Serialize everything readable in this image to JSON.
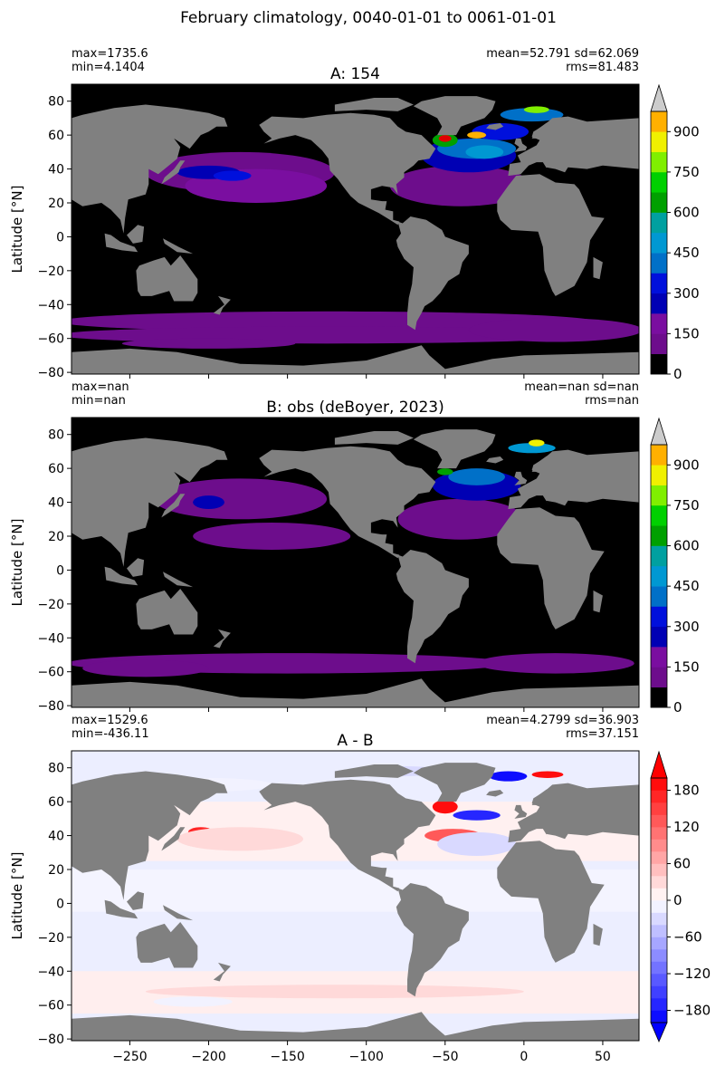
{
  "figure": {
    "suptitle": "February climatology, 0040-01-01 to 0061-01-01"
  },
  "chart_data": [
    {
      "type": "heatmap",
      "title": "A: 154",
      "stats_left": [
        "max=1735.6",
        "min=4.1404"
      ],
      "stats_right": [
        "mean=52.791 sd=62.069",
        "rms=81.483"
      ],
      "xlabel": "",
      "ylabel": "Latitude [°N]",
      "xlim": [
        -287,
        73
      ],
      "ylim": [
        -81,
        90
      ],
      "yticks": [
        80,
        60,
        40,
        20,
        0,
        -20,
        -40,
        -60,
        -80
      ],
      "yticklabels": [
        "80",
        "60",
        "40",
        "20",
        "0",
        "−20",
        "−40",
        "−60",
        "−80"
      ],
      "xticks": [
        -250,
        -200,
        -150,
        -100,
        -50,
        0,
        50
      ],
      "show_xticklabels": false,
      "colorbar": {
        "levels": [
          0,
          75,
          150,
          225,
          300,
          375,
          450,
          525,
          600,
          675,
          750,
          825,
          900,
          975
        ],
        "colors": [
          "#000000",
          "#6d0d8c",
          "#7a0ea0",
          "#0000b4",
          "#0010dc",
          "#0070c8",
          "#0098d2",
          "#00a0a0",
          "#00a000",
          "#00d000",
          "#80ef00",
          "#f0f000",
          "#ffb000",
          "#ff6000",
          "#e00000",
          "#ff0000"
        ],
        "extend": "max",
        "extend_color": "#cccccc",
        "ticks": [
          0,
          150,
          300,
          450,
          600,
          750,
          900
        ],
        "ticklabels": [
          "0",
          "150",
          "300",
          "450",
          "600",
          "750",
          "900"
        ]
      }
    },
    {
      "type": "heatmap",
      "title": "B: obs (deBoyer, 2023)",
      "stats_left": [
        "max=nan",
        "min=nan"
      ],
      "stats_right": [
        "mean=nan sd=nan",
        "rms=nan"
      ],
      "xlabel": "",
      "ylabel": "Latitude [°N]",
      "xlim": [
        -287,
        73
      ],
      "ylim": [
        -81,
        90
      ],
      "yticks": [
        80,
        60,
        40,
        20,
        0,
        -20,
        -40,
        -60,
        -80
      ],
      "yticklabels": [
        "80",
        "60",
        "40",
        "20",
        "0",
        "−20",
        "−40",
        "−60",
        "−80"
      ],
      "xticks": [
        -250,
        -200,
        -150,
        -100,
        -50,
        0,
        50
      ],
      "show_xticklabels": false,
      "colorbar": {
        "levels": [
          0,
          75,
          150,
          225,
          300,
          375,
          450,
          525,
          600,
          675,
          750,
          825,
          900,
          975
        ],
        "colors": [
          "#000000",
          "#6d0d8c",
          "#7a0ea0",
          "#0000b4",
          "#0010dc",
          "#0070c8",
          "#0098d2",
          "#00a0a0",
          "#00a000",
          "#00d000",
          "#80ef00",
          "#f0f000",
          "#ffb000",
          "#ff6000",
          "#e00000",
          "#ff0000"
        ],
        "extend": "max",
        "extend_color": "#cccccc",
        "ticks": [
          0,
          150,
          300,
          450,
          600,
          750,
          900
        ],
        "ticklabels": [
          "0",
          "150",
          "300",
          "450",
          "600",
          "750",
          "900"
        ]
      }
    },
    {
      "type": "heatmap",
      "title": "A - B",
      "stats_left": [
        "max=1529.6",
        "min=-436.11"
      ],
      "stats_right": [
        "mean=4.2799 sd=36.903",
        "rms=37.151"
      ],
      "xlabel": "",
      "ylabel": "Latitude [°N]",
      "xlim": [
        -287,
        73
      ],
      "ylim": [
        -81,
        90
      ],
      "yticks": [
        80,
        60,
        40,
        20,
        0,
        -20,
        -40,
        -60,
        -80
      ],
      "yticklabels": [
        "80",
        "60",
        "40",
        "20",
        "0",
        "−20",
        "−40",
        "−60",
        "−80"
      ],
      "xticks": [
        -250,
        -200,
        -150,
        -100,
        -50,
        0,
        50
      ],
      "xticklabels": [
        "−250",
        "−200",
        "−150",
        "−100",
        "−50",
        "0",
        "50"
      ],
      "show_xticklabels": true,
      "colorbar": {
        "range": [
          -200,
          200
        ],
        "diverging": true,
        "neg_color": "#0000ff",
        "pos_color": "#ff0000",
        "mid_color": "#ffffff",
        "extend": "both",
        "ticks": [
          180,
          120,
          60,
          0,
          -60,
          -120,
          -180
        ],
        "ticklabels": [
          "180",
          "120",
          "60",
          "0",
          "−60",
          "−120",
          "−180"
        ]
      }
    }
  ]
}
